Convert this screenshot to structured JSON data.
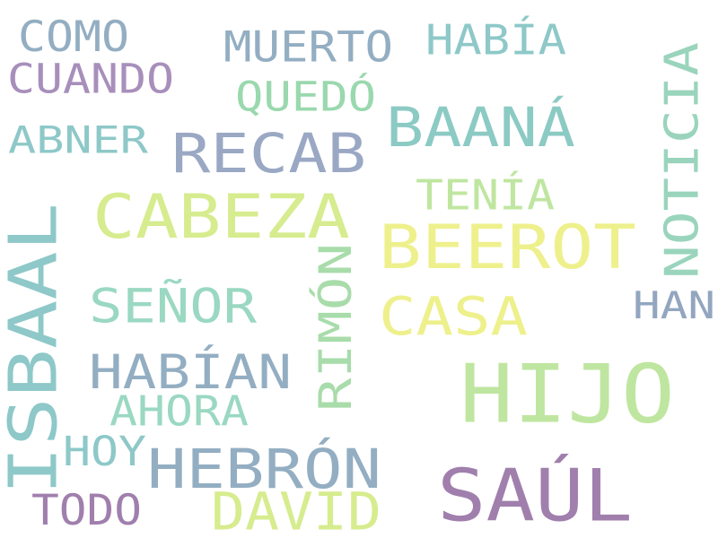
{
  "word_cloud": {
    "words": [
      {
        "text": "HIJO",
        "color": "#bfe6a0",
        "orientation": "horizontal"
      },
      {
        "text": "SAÚL",
        "color": "#a07fad",
        "orientation": "horizontal"
      },
      {
        "text": "ISBAAL",
        "color": "#8ec8c8",
        "orientation": "vertical"
      },
      {
        "text": "CABEZA",
        "color": "#d6ec8e",
        "orientation": "horizontal"
      },
      {
        "text": "BEEROT",
        "color": "#eef08c",
        "orientation": "horizontal"
      },
      {
        "text": "RECAB",
        "color": "#9aa8c4",
        "orientation": "horizontal"
      },
      {
        "text": "BAANÁ",
        "color": "#8ccac4",
        "orientation": "horizontal"
      },
      {
        "text": "HEBRÓN",
        "color": "#93aec2",
        "orientation": "horizontal"
      },
      {
        "text": "NOTICIA",
        "color": "#9ad4bd",
        "orientation": "vertical"
      },
      {
        "text": "CASA",
        "color": "#eef08c",
        "orientation": "horizontal"
      },
      {
        "text": "DAVID",
        "color": "#d6ec8e",
        "orientation": "horizontal"
      },
      {
        "text": "SEÑOR",
        "color": "#9ad8c2",
        "orientation": "horizontal"
      },
      {
        "text": "HABÍAN",
        "color": "#93aec2",
        "orientation": "horizontal"
      },
      {
        "text": "RIMÓN",
        "color": "#a8dcaa",
        "orientation": "vertical"
      },
      {
        "text": "MUERTO",
        "color": "#93aec2",
        "orientation": "horizontal"
      },
      {
        "text": "CUANDO",
        "color": "#a88fbb",
        "orientation": "horizontal"
      },
      {
        "text": "HABÍA",
        "color": "#8ec8c8",
        "orientation": "horizontal"
      },
      {
        "text": "QUEDÓ",
        "color": "#9ad8ae",
        "orientation": "horizontal"
      },
      {
        "text": "ABNER",
        "color": "#8ec8c8",
        "orientation": "horizontal"
      },
      {
        "text": "TENÍA",
        "color": "#bfe6a0",
        "orientation": "horizontal"
      },
      {
        "text": "HAN",
        "color": "#93a6c0",
        "orientation": "horizontal"
      },
      {
        "text": "COMO",
        "color": "#93aec2",
        "orientation": "horizontal"
      },
      {
        "text": "AHORA",
        "color": "#9ad8c2",
        "orientation": "horizontal"
      },
      {
        "text": "HOY",
        "color": "#8ec8c8",
        "orientation": "horizontal"
      },
      {
        "text": "TODO",
        "color": "#a07fad",
        "orientation": "horizontal"
      }
    ]
  }
}
